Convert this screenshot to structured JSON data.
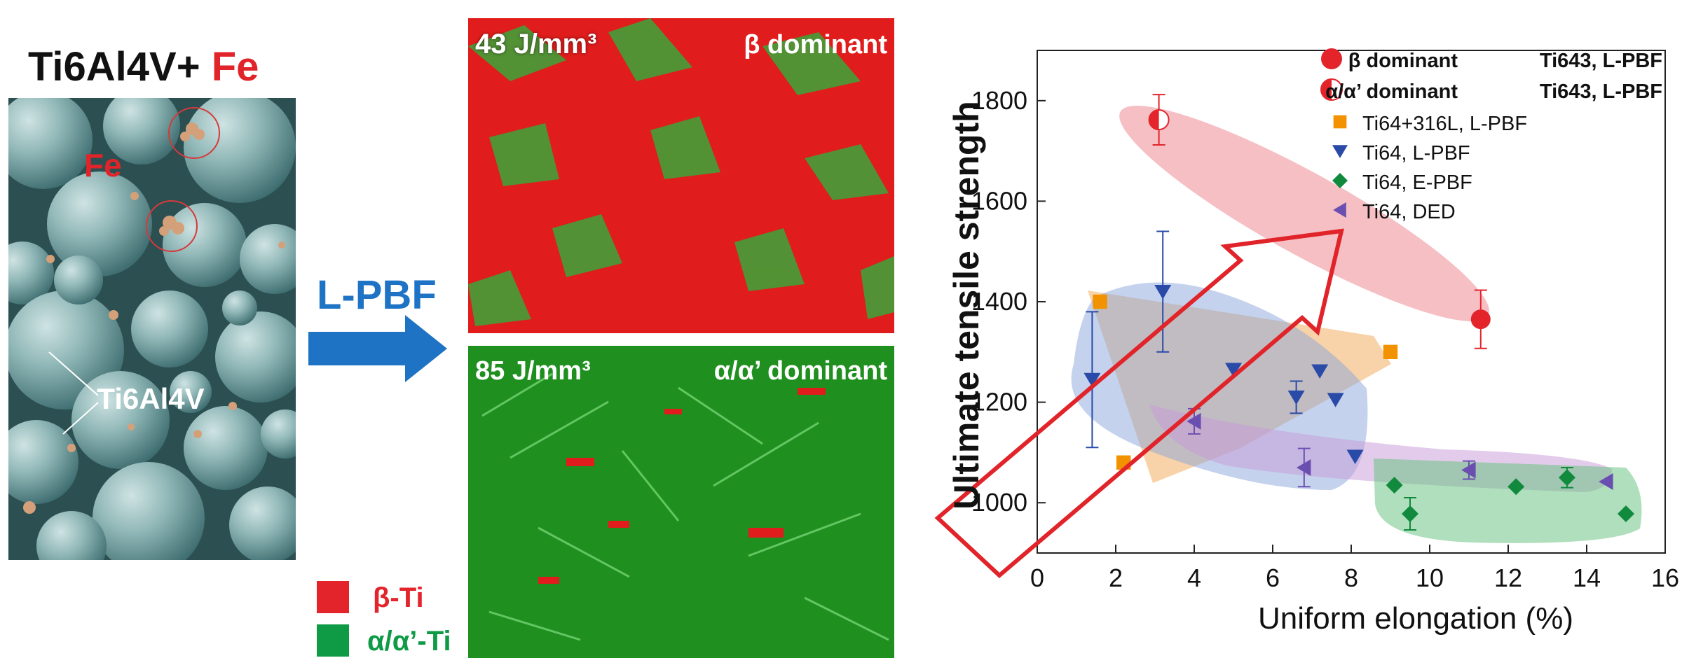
{
  "powder": {
    "title_main": "Ti6Al4V+",
    "title_add": "Fe",
    "fe_label": "Fe",
    "base_label": "Ti6Al4V"
  },
  "process": {
    "label": "L-PBF"
  },
  "micrographs": [
    {
      "energy": "43 J/mm³",
      "phase": "β dominant"
    },
    {
      "energy": "85 J/mm³",
      "phase": "α/α’ dominant"
    }
  ],
  "phase_legend": [
    {
      "label": "β-Ti",
      "color": "#e3242b"
    },
    {
      "label": "α/α’-Ti",
      "color": "#0f9a46"
    }
  ],
  "chart_data": {
    "type": "scatter",
    "xlabel": "Uniform elongation (%)",
    "ylabel": "Ultimate tensile strength",
    "xlim": [
      0,
      16
    ],
    "ylim": [
      900,
      1900
    ],
    "xticks": [
      0,
      2,
      4,
      6,
      8,
      10,
      12,
      14,
      16
    ],
    "yticks": [
      1000,
      1200,
      1400,
      1600,
      1800
    ],
    "legend_position": "top-right",
    "series": [
      {
        "name": "β dominant",
        "name_bold_suffix": "Ti643, L-PBF",
        "marker": "circle",
        "color": "#e3242b",
        "points": [
          {
            "x": 11.3,
            "y": 1365,
            "err": 58
          }
        ]
      },
      {
        "name": "α/α’ dominant",
        "name_bold_suffix": "Ti643, L-PBF",
        "marker": "half-circle",
        "color": "#e3242b",
        "points": [
          {
            "x": 3.1,
            "y": 1762,
            "err": 50
          }
        ]
      },
      {
        "name": "Ti64+316L, L-PBF",
        "marker": "square",
        "color": "#f39200",
        "points": [
          {
            "x": 1.6,
            "y": 1400
          },
          {
            "x": 2.2,
            "y": 1080
          },
          {
            "x": 9.0,
            "y": 1300
          }
        ]
      },
      {
        "name": "Ti64, L-PBF",
        "marker": "triangle-down",
        "color": "#2a4aa8",
        "points": [
          {
            "x": 1.4,
            "y": 1245,
            "err": 135
          },
          {
            "x": 3.2,
            "y": 1420,
            "err": 120
          },
          {
            "x": 5.0,
            "y": 1265
          },
          {
            "x": 6.6,
            "y": 1210,
            "err": 32
          },
          {
            "x": 7.2,
            "y": 1262
          },
          {
            "x": 7.6,
            "y": 1205
          },
          {
            "x": 8.1,
            "y": 1092
          }
        ]
      },
      {
        "name": "Ti64, E-PBF",
        "marker": "diamond",
        "color": "#118a3e",
        "points": [
          {
            "x": 9.1,
            "y": 1035
          },
          {
            "x": 9.5,
            "y": 978,
            "err": 32
          },
          {
            "x": 12.2,
            "y": 1032
          },
          {
            "x": 13.5,
            "y": 1050,
            "err": 20
          },
          {
            "x": 15.0,
            "y": 978
          }
        ]
      },
      {
        "name": "Ti64, DED",
        "marker": "triangle-left",
        "color": "#6b4fb0",
        "points": [
          {
            "x": 4.0,
            "y": 1162,
            "err": 25
          },
          {
            "x": 6.8,
            "y": 1070,
            "err": 38
          },
          {
            "x": 11.0,
            "y": 1065,
            "err": 18
          },
          {
            "x": 14.5,
            "y": 1042
          }
        ]
      }
    ]
  }
}
